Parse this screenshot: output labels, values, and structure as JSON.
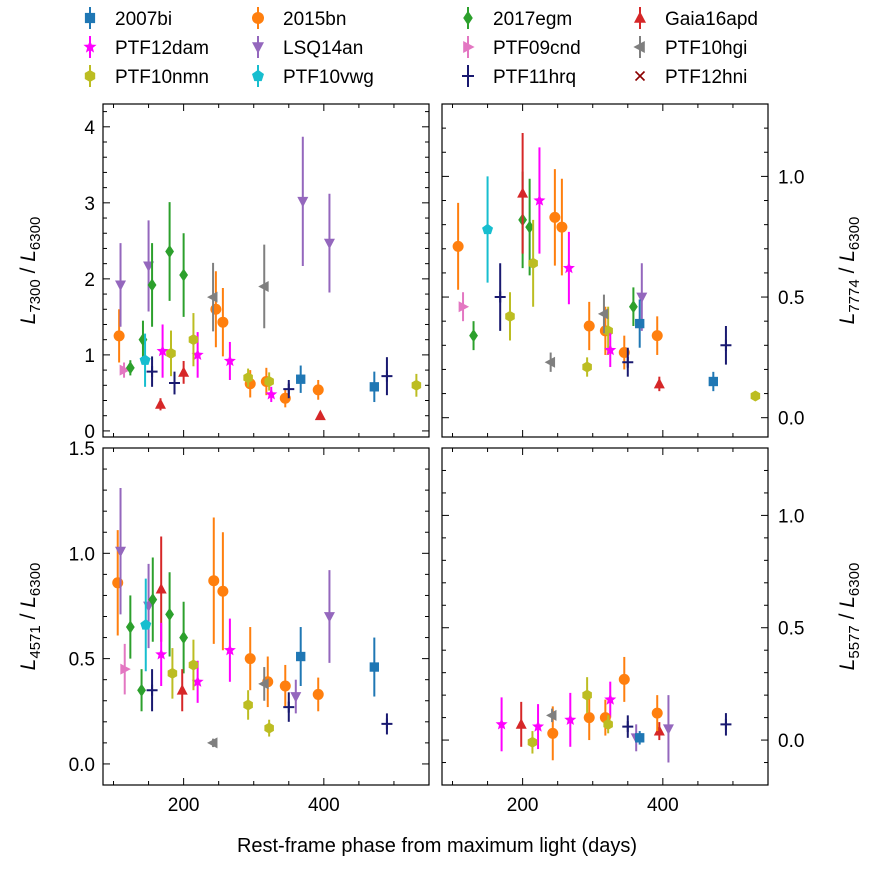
{
  "chart_data": {
    "type": "scatter",
    "xlabel": "Rest-frame phase from maximum light (days)",
    "xlim": [
      85,
      550
    ],
    "x_ticks": [
      200,
      400
    ],
    "legend": [
      {
        "name": "2007bi",
        "color": "#1f77b4",
        "marker": "square"
      },
      {
        "name": "2015bn",
        "color": "#ff7f0e",
        "marker": "circle"
      },
      {
        "name": "2017egm",
        "color": "#2ca02c",
        "marker": "diamond"
      },
      {
        "name": "Gaia16apd",
        "color": "#d62728",
        "marker": "triangle-up"
      },
      {
        "name": "PTF12dam",
        "color": "#ff00ff",
        "marker": "star"
      },
      {
        "name": "LSQ14an",
        "color": "#9467bd",
        "marker": "triangle-down"
      },
      {
        "name": "PTF09cnd",
        "color": "#e377c2",
        "marker": "triangle-right"
      },
      {
        "name": "PTF10hgi",
        "color": "#7f7f7f",
        "marker": "triangle-left"
      },
      {
        "name": "PTF10nmn",
        "color": "#bcbd22",
        "marker": "hexagon"
      },
      {
        "name": "PTF10vwg",
        "color": "#17becf",
        "marker": "pentagon"
      },
      {
        "name": "PTF11hrq",
        "color": "#191970",
        "marker": "plus"
      },
      {
        "name": "PTF12hni",
        "color": "#8b0000",
        "marker": "x"
      }
    ],
    "panels": [
      {
        "id": "top-left",
        "ylabel_main": "L",
        "ylabel_sub_top": "7300",
        "ylabel_sep": " / ",
        "ylabel_sub_bottom": "6300",
        "ylim": [
          -0.08,
          4.3
        ],
        "y_ticks": [
          0,
          1,
          2,
          3,
          4
        ],
        "y_tick_labels": [
          "0",
          "1",
          "2",
          "3",
          "4"
        ],
        "axis_side": "left",
        "points": [
          {
            "s": "2015bn",
            "x": 108,
            "y": 1.25,
            "err": 0.35
          },
          {
            "s": "2015bn",
            "x": 246,
            "y": 1.6,
            "err": 0.5
          },
          {
            "s": "2015bn",
            "x": 256,
            "y": 1.43,
            "err": 0.45
          },
          {
            "s": "2015bn",
            "x": 295,
            "y": 0.62,
            "err": 0.18
          },
          {
            "s": "2015bn",
            "x": 318,
            "y": 0.65,
            "err": 0.18
          },
          {
            "s": "2015bn",
            "x": 345,
            "y": 0.43,
            "err": 0.12
          },
          {
            "s": "2015bn",
            "x": 392,
            "y": 0.54,
            "err": 0.13
          },
          {
            "s": "LSQ14an",
            "x": 110,
            "y": 1.92,
            "err": 0.55
          },
          {
            "s": "LSQ14an",
            "x": 150,
            "y": 2.17,
            "err": 0.6
          },
          {
            "s": "LSQ14an",
            "x": 370,
            "y": 3.02,
            "err": 0.85
          },
          {
            "s": "LSQ14an",
            "x": 408,
            "y": 2.47,
            "err": 0.65
          },
          {
            "s": "PTF09cnd",
            "x": 115,
            "y": 0.8,
            "err": 0.1
          },
          {
            "s": "2017egm",
            "x": 124,
            "y": 0.83,
            "err": 0.1
          },
          {
            "s": "2017egm",
            "x": 142,
            "y": 1.2,
            "err": 0.25
          },
          {
            "s": "2017egm",
            "x": 155,
            "y": 1.92,
            "err": 0.55
          },
          {
            "s": "2017egm",
            "x": 180,
            "y": 2.36,
            "err": 0.65
          },
          {
            "s": "2017egm",
            "x": 200,
            "y": 2.05,
            "err": 0.55
          },
          {
            "s": "PTF10vwg",
            "x": 145,
            "y": 0.93,
            "err": 0.35
          },
          {
            "s": "PTF11hrq",
            "x": 155,
            "y": 0.78,
            "err": 0.2
          },
          {
            "s": "PTF11hrq",
            "x": 187,
            "y": 0.63,
            "err": 0.15
          },
          {
            "s": "PTF11hrq",
            "x": 350,
            "y": 0.55,
            "err": 0.12
          },
          {
            "s": "PTF11hrq",
            "x": 490,
            "y": 0.72,
            "err": 0.25
          },
          {
            "s": "Gaia16apd",
            "x": 167,
            "y": 0.35,
            "err": 0.08
          },
          {
            "s": "Gaia16apd",
            "x": 200,
            "y": 0.77,
            "err": 0.15
          },
          {
            "s": "Gaia16apd",
            "x": 395,
            "y": 0.2,
            "err": 0.05
          },
          {
            "s": "PTF12dam",
            "x": 170,
            "y": 1.05,
            "err": 0.35
          },
          {
            "s": "PTF12dam",
            "x": 220,
            "y": 1.0,
            "err": 0.3
          },
          {
            "s": "PTF12dam",
            "x": 266,
            "y": 0.92,
            "err": 0.25
          },
          {
            "s": "PTF12dam",
            "x": 325,
            "y": 0.48,
            "err": 0.1
          },
          {
            "s": "PTF10nmn",
            "x": 182,
            "y": 1.02,
            "err": 0.3
          },
          {
            "s": "PTF10nmn",
            "x": 214,
            "y": 1.2,
            "err": 0.35
          },
          {
            "s": "PTF10nmn",
            "x": 292,
            "y": 0.7,
            "err": 0.12
          },
          {
            "s": "PTF10nmn",
            "x": 322,
            "y": 0.65,
            "err": 0.12
          },
          {
            "s": "PTF10nmn",
            "x": 532,
            "y": 0.6,
            "err": 0.15
          },
          {
            "s": "PTF10hgi",
            "x": 242,
            "y": 1.76,
            "err": 0.45
          },
          {
            "s": "PTF10hgi",
            "x": 315,
            "y": 1.9,
            "err": 0.55
          },
          {
            "s": "2007bi",
            "x": 367,
            "y": 0.68,
            "err": 0.18
          },
          {
            "s": "2007bi",
            "x": 472,
            "y": 0.58,
            "err": 0.2
          }
        ]
      },
      {
        "id": "top-right",
        "ylabel_main": "L",
        "ylabel_sub_top": "7774",
        "ylabel_sep": " / ",
        "ylabel_sub_bottom": "6300",
        "ylim": [
          -0.08,
          1.3
        ],
        "y_ticks": [
          0,
          0.5,
          1.0
        ],
        "y_tick_labels": [
          "0.0",
          "0.5",
          "1.0"
        ],
        "axis_side": "right",
        "points": [
          {
            "s": "2015bn",
            "x": 108,
            "y": 0.71,
            "err": 0.18
          },
          {
            "s": "2015bn",
            "x": 246,
            "y": 0.83,
            "err": 0.2
          },
          {
            "s": "2015bn",
            "x": 256,
            "y": 0.79,
            "err": 0.2
          },
          {
            "s": "2015bn",
            "x": 295,
            "y": 0.38,
            "err": 0.1
          },
          {
            "s": "2015bn",
            "x": 318,
            "y": 0.36,
            "err": 0.1
          },
          {
            "s": "2015bn",
            "x": 345,
            "y": 0.27,
            "err": 0.07
          },
          {
            "s": "2015bn",
            "x": 392,
            "y": 0.34,
            "err": 0.08
          },
          {
            "s": "PTF09cnd",
            "x": 115,
            "y": 0.46,
            "err": 0.06
          },
          {
            "s": "2017egm",
            "x": 130,
            "y": 0.34,
            "err": 0.06
          },
          {
            "s": "2017egm",
            "x": 200,
            "y": 0.82,
            "err": 0.2
          },
          {
            "s": "2017egm",
            "x": 210,
            "y": 0.79,
            "err": 0.2
          },
          {
            "s": "2017egm",
            "x": 358,
            "y": 0.46,
            "err": 0.08
          },
          {
            "s": "PTF10vwg",
            "x": 150,
            "y": 0.78,
            "err": 0.22
          },
          {
            "s": "PTF11hrq",
            "x": 168,
            "y": 0.5,
            "err": 0.14
          },
          {
            "s": "PTF11hrq",
            "x": 350,
            "y": 0.23,
            "err": 0.06
          },
          {
            "s": "PTF11hrq",
            "x": 490,
            "y": 0.3,
            "err": 0.08
          },
          {
            "s": "PTF10nmn",
            "x": 182,
            "y": 0.42,
            "err": 0.1
          },
          {
            "s": "PTF10nmn",
            "x": 215,
            "y": 0.64,
            "err": 0.18
          },
          {
            "s": "PTF10nmn",
            "x": 292,
            "y": 0.21,
            "err": 0.04
          },
          {
            "s": "PTF10nmn",
            "x": 322,
            "y": 0.36,
            "err": 0.1
          },
          {
            "s": "PTF10nmn",
            "x": 532,
            "y": 0.09,
            "err": 0.02
          },
          {
            "s": "Gaia16apd",
            "x": 200,
            "y": 0.93,
            "err": 0.25
          },
          {
            "s": "Gaia16apd",
            "x": 395,
            "y": 0.14,
            "err": 0.03
          },
          {
            "s": "PTF12dam",
            "x": 224,
            "y": 0.9,
            "err": 0.22
          },
          {
            "s": "PTF12dam",
            "x": 266,
            "y": 0.62,
            "err": 0.15
          },
          {
            "s": "PTF12dam",
            "x": 325,
            "y": 0.28,
            "err": 0.07
          },
          {
            "s": "PTF10hgi",
            "x": 240,
            "y": 0.23,
            "err": 0.04
          },
          {
            "s": "PTF10hgi",
            "x": 316,
            "y": 0.43,
            "err": 0.08
          },
          {
            "s": "LSQ14an",
            "x": 370,
            "y": 0.5,
            "err": 0.14
          },
          {
            "s": "2007bi",
            "x": 367,
            "y": 0.39,
            "err": 0.1
          },
          {
            "s": "2007bi",
            "x": 472,
            "y": 0.15,
            "err": 0.04
          }
        ]
      },
      {
        "id": "bottom-left",
        "ylabel_main": "L",
        "ylabel_sub_top": "4571",
        "ylabel_sep": " / ",
        "ylabel_sub_bottom": "6300",
        "ylim": [
          -0.1,
          1.5
        ],
        "y_ticks": [
          0,
          0.5,
          1.0,
          1.5
        ],
        "y_tick_labels": [
          "0.0",
          "0.5",
          "1.0",
          "1.5"
        ],
        "axis_side": "left",
        "points": [
          {
            "s": "2015bn",
            "x": 106,
            "y": 0.86,
            "err": 0.25
          },
          {
            "s": "2015bn",
            "x": 243,
            "y": 0.87,
            "err": 0.3
          },
          {
            "s": "2015bn",
            "x": 256,
            "y": 0.82,
            "err": 0.28
          },
          {
            "s": "2015bn",
            "x": 295,
            "y": 0.5,
            "err": 0.15
          },
          {
            "s": "2015bn",
            "x": 320,
            "y": 0.39,
            "err": 0.12
          },
          {
            "s": "2015bn",
            "x": 345,
            "y": 0.37,
            "err": 0.1
          },
          {
            "s": "2015bn",
            "x": 392,
            "y": 0.33,
            "err": 0.08
          },
          {
            "s": "LSQ14an",
            "x": 110,
            "y": 1.01,
            "err": 0.3
          },
          {
            "s": "LSQ14an",
            "x": 150,
            "y": 0.75,
            "err": 0.2
          },
          {
            "s": "LSQ14an",
            "x": 360,
            "y": 0.32,
            "err": 0.08
          },
          {
            "s": "LSQ14an",
            "x": 408,
            "y": 0.7,
            "err": 0.22
          },
          {
            "s": "PTF09cnd",
            "x": 116,
            "y": 0.45,
            "err": 0.12
          },
          {
            "s": "2017egm",
            "x": 124,
            "y": 0.65,
            "err": 0.15
          },
          {
            "s": "2017egm",
            "x": 140,
            "y": 0.35,
            "err": 0.1
          },
          {
            "s": "2017egm",
            "x": 156,
            "y": 0.78,
            "err": 0.2
          },
          {
            "s": "2017egm",
            "x": 180,
            "y": 0.71,
            "err": 0.2
          },
          {
            "s": "2017egm",
            "x": 200,
            "y": 0.6,
            "err": 0.17
          },
          {
            "s": "PTF10vwg",
            "x": 146,
            "y": 0.66,
            "err": 0.22
          },
          {
            "s": "PTF11hrq",
            "x": 155,
            "y": 0.35,
            "err": 0.1
          },
          {
            "s": "PTF11hrq",
            "x": 350,
            "y": 0.27,
            "err": 0.07
          },
          {
            "s": "PTF11hrq",
            "x": 490,
            "y": 0.19,
            "err": 0.05
          },
          {
            "s": "Gaia16apd",
            "x": 168,
            "y": 0.83,
            "err": 0.25
          },
          {
            "s": "Gaia16apd",
            "x": 198,
            "y": 0.35,
            "err": 0.1
          },
          {
            "s": "PTF12dam",
            "x": 168,
            "y": 0.52,
            "err": 0.15
          },
          {
            "s": "PTF12dam",
            "x": 220,
            "y": 0.39,
            "err": 0.1
          },
          {
            "s": "PTF12dam",
            "x": 266,
            "y": 0.54,
            "err": 0.15
          },
          {
            "s": "PTF10nmn",
            "x": 184,
            "y": 0.43,
            "err": 0.12
          },
          {
            "s": "PTF10nmn",
            "x": 214,
            "y": 0.47,
            "err": 0.12
          },
          {
            "s": "PTF10nmn",
            "x": 292,
            "y": 0.28,
            "err": 0.07
          },
          {
            "s": "PTF10nmn",
            "x": 322,
            "y": 0.17,
            "err": 0.04
          },
          {
            "s": "PTF10hgi",
            "x": 242,
            "y": 0.1,
            "err": 0.02
          },
          {
            "s": "PTF10hgi",
            "x": 315,
            "y": 0.38,
            "err": 0.08
          },
          {
            "s": "2007bi",
            "x": 367,
            "y": 0.51,
            "err": 0.14
          },
          {
            "s": "2007bi",
            "x": 472,
            "y": 0.46,
            "err": 0.14
          }
        ]
      },
      {
        "id": "bottom-right",
        "ylabel_main": "L",
        "ylabel_sub_top": "5577",
        "ylabel_sep": " / ",
        "ylabel_sub_bottom": "6300",
        "ylim": [
          -0.2,
          1.3
        ],
        "y_ticks": [
          0,
          0.5,
          1.0
        ],
        "y_tick_labels": [
          "0.0",
          "0.5",
          "1.0"
        ],
        "axis_side": "right",
        "points": [
          {
            "s": "PTF12dam",
            "x": 170,
            "y": 0.07,
            "err": 0.12
          },
          {
            "s": "PTF12dam",
            "x": 222,
            "y": 0.06,
            "err": 0.1
          },
          {
            "s": "PTF12dam",
            "x": 268,
            "y": 0.09,
            "err": 0.12
          },
          {
            "s": "PTF12dam",
            "x": 325,
            "y": 0.18,
            "err": 0.08
          },
          {
            "s": "Gaia16apd",
            "x": 198,
            "y": 0.07,
            "err": 0.1
          },
          {
            "s": "Gaia16apd",
            "x": 395,
            "y": 0.04,
            "err": 0.04
          },
          {
            "s": "2015bn",
            "x": 243,
            "y": 0.03,
            "err": 0.12
          },
          {
            "s": "2015bn",
            "x": 295,
            "y": 0.1,
            "err": 0.1
          },
          {
            "s": "2015bn",
            "x": 318,
            "y": 0.1,
            "err": 0.08
          },
          {
            "s": "2015bn",
            "x": 345,
            "y": 0.27,
            "err": 0.1
          },
          {
            "s": "2015bn",
            "x": 392,
            "y": 0.12,
            "err": 0.08
          },
          {
            "s": "PTF10nmn",
            "x": 214,
            "y": -0.01,
            "err": 0.05
          },
          {
            "s": "PTF10nmn",
            "x": 292,
            "y": 0.2,
            "err": 0.08
          },
          {
            "s": "PTF10nmn",
            "x": 322,
            "y": 0.07,
            "err": 0.04
          },
          {
            "s": "PTF10hgi",
            "x": 242,
            "y": 0.11,
            "err": 0.03
          },
          {
            "s": "PTF11hrq",
            "x": 350,
            "y": 0.06,
            "err": 0.05
          },
          {
            "s": "PTF11hrq",
            "x": 490,
            "y": 0.07,
            "err": 0.05
          },
          {
            "s": "LSQ14an",
            "x": 362,
            "y": 0.01,
            "err": 0.06
          },
          {
            "s": "LSQ14an",
            "x": 408,
            "y": 0.05,
            "err": 0.15
          },
          {
            "s": "2007bi",
            "x": 367,
            "y": 0.01,
            "err": 0.03
          }
        ]
      }
    ]
  }
}
